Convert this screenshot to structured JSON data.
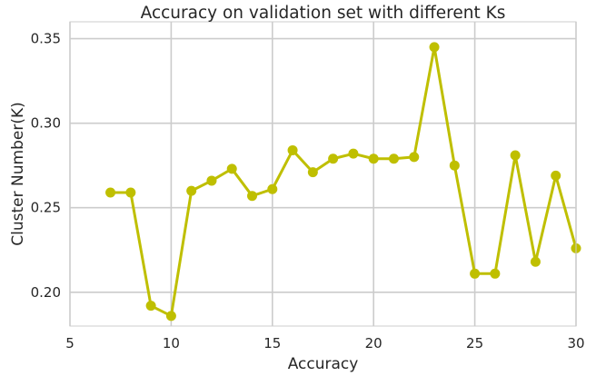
{
  "chart_data": {
    "type": "line",
    "title": "Accuracy on validation set with different Ks",
    "xlabel": "Accuracy",
    "ylabel": "Cluster Number(K)",
    "xlim": [
      5,
      30
    ],
    "ylim": [
      0.18,
      0.36
    ],
    "xticks": [
      5,
      10,
      15,
      20,
      25,
      30
    ],
    "yticks": [
      0.2,
      0.25,
      0.3,
      0.35
    ],
    "xtick_labels": [
      "5",
      "10",
      "15",
      "20",
      "25",
      "30"
    ],
    "ytick_labels": [
      "0.20",
      "0.25",
      "0.30",
      "0.35"
    ],
    "grid": true,
    "color": "#bfbf00",
    "series": [
      {
        "x": [
          7,
          8,
          9,
          10,
          11,
          12,
          13,
          14,
          15,
          16,
          17,
          18,
          19,
          20,
          21,
          22,
          23,
          24,
          25,
          26,
          27,
          28,
          29,
          30
        ],
        "y": [
          0.259,
          0.259,
          0.192,
          0.186,
          0.26,
          0.266,
          0.273,
          0.257,
          0.261,
          0.284,
          0.271,
          0.279,
          0.282,
          0.279,
          0.279,
          0.28,
          0.345,
          0.275,
          0.211,
          0.211,
          0.281,
          0.218,
          0.269,
          0.226
        ]
      }
    ]
  }
}
